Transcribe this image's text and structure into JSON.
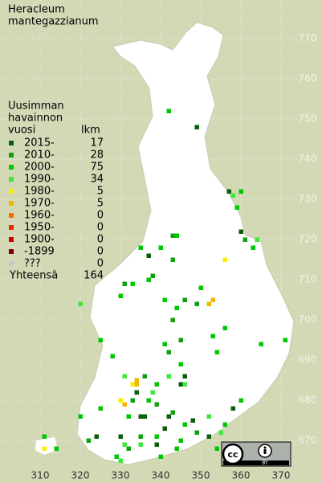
{
  "title": [
    "Heracleum",
    "mantegazzianum"
  ],
  "grid": {
    "x_ticks": [
      310,
      320,
      330,
      340,
      350,
      360,
      370
    ],
    "y_ticks": [
      770,
      760,
      750,
      740,
      730,
      720,
      710,
      700,
      690,
      680,
      670
    ]
  },
  "legend": {
    "heading": [
      "Uusimman",
      "havainnon",
      "vuosi"
    ],
    "count_heading": "lkm",
    "rows": [
      {
        "label": "2015-",
        "count": 17,
        "color": "#0a5f0a",
        "points": [
          [
            349,
            748
          ],
          [
            337,
            716
          ],
          [
            324,
            671
          ],
          [
            336,
            676
          ],
          [
            339,
            669
          ],
          [
            342,
            676
          ],
          [
            345,
            684
          ],
          [
            334,
            682
          ],
          [
            330,
            671
          ],
          [
            348,
            675
          ],
          [
            358,
            678
          ],
          [
            352,
            671
          ],
          [
            360,
            722
          ],
          [
            357,
            732
          ],
          [
            341,
            673
          ],
          [
            335,
            676
          ],
          [
            346,
            686
          ]
        ]
      },
      {
        "label": "2010-",
        "count": 28,
        "color": "#12a012",
        "points": [
          [
            343,
            721
          ],
          [
            343,
            715
          ],
          [
            338,
            711
          ],
          [
            331,
            709
          ],
          [
            343,
            700
          ],
          [
            342,
            692
          ],
          [
            345,
            695
          ],
          [
            346,
            705
          ],
          [
            349,
            704
          ],
          [
            336,
            686
          ],
          [
            333,
            680
          ],
          [
            339,
            679
          ],
          [
            343,
            677
          ],
          [
            335,
            671
          ],
          [
            332,
            668
          ],
          [
            349,
            672
          ],
          [
            361,
            720
          ],
          [
            322,
            670
          ]
        ]
      },
      {
        "label": "2000-",
        "count": 75,
        "color": "#00c800",
        "points": [
          [
            342,
            752
          ],
          [
            360,
            732
          ],
          [
            359,
            728
          ],
          [
            344,
            721
          ],
          [
            340,
            718
          ],
          [
            337,
            710
          ],
          [
            333,
            709
          ],
          [
            330,
            706
          ],
          [
            341,
            705
          ],
          [
            350,
            708
          ],
          [
            353,
            696
          ],
          [
            354,
            692
          ],
          [
            356,
            698
          ],
          [
            365,
            694
          ],
          [
            371,
            695
          ],
          [
            363,
            718
          ],
          [
            345,
            689
          ],
          [
            339,
            684
          ],
          [
            337,
            680
          ],
          [
            332,
            676
          ],
          [
            339,
            671
          ],
          [
            345,
            670
          ],
          [
            346,
            674
          ],
          [
            356,
            674
          ],
          [
            360,
            680
          ],
          [
            325,
            678
          ],
          [
            320,
            676
          ],
          [
            314,
            668
          ],
          [
            311,
            671
          ],
          [
            329,
            666
          ],
          [
            340,
            666
          ],
          [
            344,
            668
          ],
          [
            354,
            668
          ],
          [
            325,
            695
          ],
          [
            328,
            691
          ],
          [
            335,
            718
          ],
          [
            341,
            694
          ],
          [
            344,
            703
          ]
        ]
      },
      {
        "label": "1990-",
        "count": 34,
        "color": "#3ce83c",
        "points": [
          [
            358,
            731
          ],
          [
            364,
            720
          ],
          [
            352,
            676
          ],
          [
            355,
            672
          ],
          [
            331,
            669
          ],
          [
            335,
            669
          ],
          [
            346,
            684
          ],
          [
            342,
            686
          ],
          [
            333,
            684
          ],
          [
            338,
            682
          ],
          [
            330,
            665
          ],
          [
            320,
            704
          ],
          [
            331,
            686
          ]
        ]
      },
      {
        "label": "1980-",
        "count": 5,
        "color": "#f8f000",
        "points": [
          [
            356,
            715
          ],
          [
            334,
            685
          ],
          [
            330,
            680
          ],
          [
            333,
            684
          ],
          [
            311,
            668
          ]
        ]
      },
      {
        "label": "1970-",
        "count": 5,
        "color": "#f0b800",
        "points": [
          [
            352,
            704
          ],
          [
            353,
            705
          ],
          [
            334,
            685
          ],
          [
            334,
            684
          ],
          [
            331,
            679
          ]
        ]
      },
      {
        "label": "1960-",
        "count": 0,
        "color": "#f07000"
      },
      {
        "label": "1950-",
        "count": 0,
        "color": "#e83000"
      },
      {
        "label": "1900-",
        "count": 0,
        "color": "#c80000"
      },
      {
        "label": "-1899",
        "count": 0,
        "color": "#800000"
      },
      {
        "label": "???",
        "count": 0,
        "color": "#c8c8c8"
      }
    ],
    "total_label": "Yhteensä",
    "total": 164
  },
  "license": {
    "icon": "cc",
    "label": "BY"
  }
}
